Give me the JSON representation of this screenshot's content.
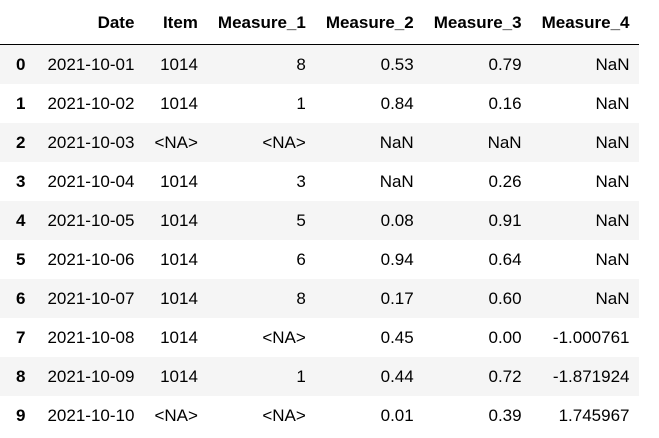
{
  "table": {
    "index_header": "",
    "columns": [
      "Date",
      "Item",
      "Measure_1",
      "Measure_2",
      "Measure_3",
      "Measure_4"
    ],
    "rows": [
      {
        "index": "0",
        "cells": [
          "2021-10-01",
          "1014",
          "8",
          "0.53",
          "0.79",
          "NaN"
        ]
      },
      {
        "index": "1",
        "cells": [
          "2021-10-02",
          "1014",
          "1",
          "0.84",
          "0.16",
          "NaN"
        ]
      },
      {
        "index": "2",
        "cells": [
          "2021-10-03",
          "<NA>",
          "<NA>",
          "NaN",
          "NaN",
          "NaN"
        ]
      },
      {
        "index": "3",
        "cells": [
          "2021-10-04",
          "1014",
          "3",
          "NaN",
          "0.26",
          "NaN"
        ]
      },
      {
        "index": "4",
        "cells": [
          "2021-10-05",
          "1014",
          "5",
          "0.08",
          "0.91",
          "NaN"
        ]
      },
      {
        "index": "5",
        "cells": [
          "2021-10-06",
          "1014",
          "6",
          "0.94",
          "0.64",
          "NaN"
        ]
      },
      {
        "index": "6",
        "cells": [
          "2021-10-07",
          "1014",
          "8",
          "0.17",
          "0.60",
          "NaN"
        ]
      },
      {
        "index": "7",
        "cells": [
          "2021-10-08",
          "1014",
          "<NA>",
          "0.45",
          "0.00",
          "-1.000761"
        ]
      },
      {
        "index": "8",
        "cells": [
          "2021-10-09",
          "1014",
          "1",
          "0.44",
          "0.72",
          "-1.871924"
        ]
      },
      {
        "index": "9",
        "cells": [
          "2021-10-10",
          "<NA>",
          "<NA>",
          "0.01",
          "0.39",
          "1.745967"
        ]
      }
    ]
  },
  "colors": {
    "stripe": "#f5f5f5",
    "header_border": "#000000",
    "text": "#000000",
    "background": "#ffffff"
  }
}
